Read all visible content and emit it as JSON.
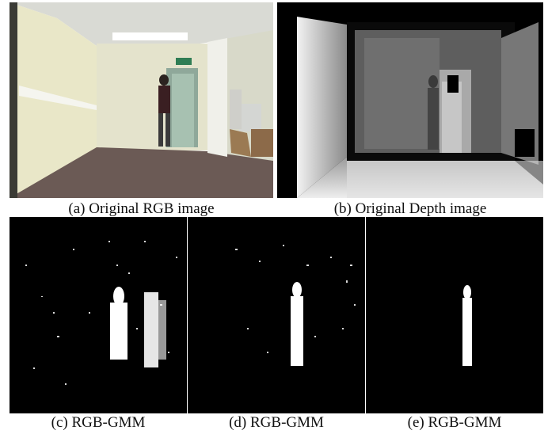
{
  "figure": {
    "panels": [
      {
        "id": "a",
        "caption": "(a) Original RGB image",
        "content": "rgb-scene"
      },
      {
        "id": "b",
        "caption": "(b) Original Depth image",
        "content": "depth-map"
      },
      {
        "id": "c",
        "caption": "(c) RGB-GMM",
        "content": "foreground-mask"
      },
      {
        "id": "d",
        "caption": "(d) RGB-GMM",
        "content": "foreground-mask"
      },
      {
        "id": "e",
        "caption": "(e) RGB-GMM",
        "content": "foreground-mask"
      }
    ]
  }
}
